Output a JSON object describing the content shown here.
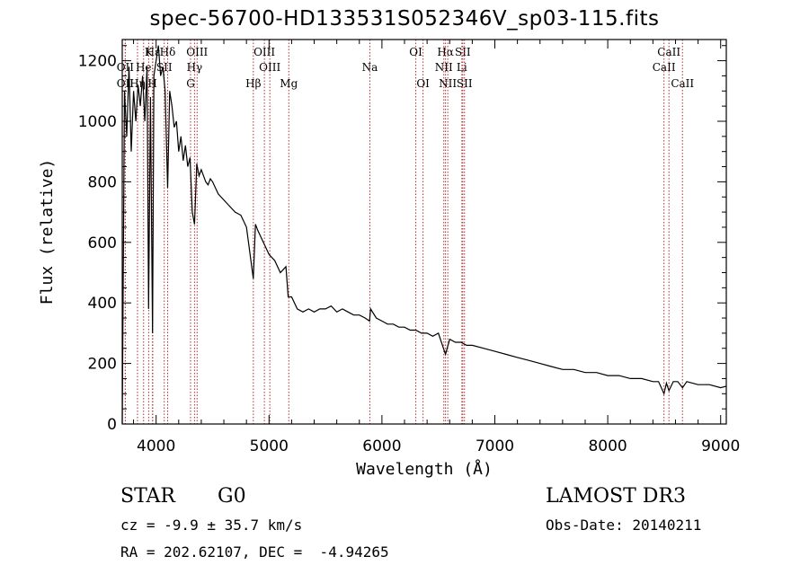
{
  "chart_data": {
    "type": "line",
    "title": "spec-56700-HD133531S052346V_sp03-115.fits",
    "xlabel": "Wavelength (Å)",
    "ylabel": "Flux (relative)",
    "xlim": [
      3700,
      9050
    ],
    "ylim": [
      0,
      1270
    ],
    "x_ticks": [
      4000,
      5000,
      6000,
      7000,
      8000,
      9000
    ],
    "y_ticks": [
      0,
      200,
      400,
      600,
      800,
      1000,
      1200
    ],
    "series": [
      {
        "name": "spectrum",
        "x": [
          3700,
          3720,
          3740,
          3760,
          3780,
          3800,
          3820,
          3840,
          3860,
          3880,
          3900,
          3920,
          3933,
          3950,
          3968,
          3980,
          4000,
          4020,
          4040,
          4060,
          4080,
          4102,
          4120,
          4140,
          4160,
          4180,
          4200,
          4220,
          4240,
          4260,
          4280,
          4300,
          4320,
          4340,
          4360,
          4380,
          4400,
          4420,
          4440,
          4460,
          4480,
          4500,
          4550,
          4600,
          4650,
          4700,
          4750,
          4800,
          4861,
          4880,
          4900,
          4950,
          5000,
          5050,
          5100,
          5150,
          5170,
          5200,
          5250,
          5300,
          5350,
          5400,
          5450,
          5500,
          5550,
          5600,
          5650,
          5700,
          5750,
          5800,
          5850,
          5890,
          5900,
          5950,
          6000,
          6050,
          6100,
          6150,
          6200,
          6250,
          6300,
          6350,
          6400,
          6450,
          6500,
          6563,
          6600,
          6650,
          6700,
          6750,
          6800,
          6900,
          7000,
          7100,
          7200,
          7300,
          7400,
          7500,
          7600,
          7700,
          7800,
          7900,
          8000,
          8100,
          8200,
          8300,
          8400,
          8450,
          8498,
          8520,
          8542,
          8580,
          8620,
          8662,
          8700,
          8800,
          8900,
          9000,
          9050
        ],
        "y": [
          0,
          1100,
          950,
          1180,
          900,
          1100,
          1000,
          1120,
          1050,
          1150,
          1000,
          1180,
          380,
          1080,
          300,
          1150,
          1200,
          1250,
          1150,
          1180,
          1100,
          780,
          1100,
          1050,
          980,
          1000,
          900,
          950,
          870,
          920,
          850,
          880,
          700,
          660,
          860,
          820,
          840,
          820,
          800,
          790,
          810,
          800,
          760,
          740,
          720,
          700,
          690,
          650,
          480,
          660,
          640,
          600,
          560,
          540,
          500,
          520,
          420,
          420,
          380,
          370,
          380,
          370,
          380,
          380,
          390,
          370,
          380,
          370,
          360,
          360,
          350,
          340,
          380,
          350,
          340,
          330,
          330,
          320,
          320,
          310,
          310,
          300,
          300,
          290,
          300,
          230,
          280,
          270,
          270,
          260,
          260,
          250,
          240,
          230,
          220,
          210,
          200,
          190,
          180,
          180,
          170,
          170,
          160,
          160,
          150,
          150,
          140,
          140,
          100,
          135,
          110,
          140,
          140,
          120,
          140,
          130,
          130,
          120,
          125
        ]
      }
    ],
    "lines": [
      {
        "label": "Hε",
        "wl": 3970,
        "row": 1
      },
      {
        "label": "OII",
        "wl": 3727,
        "row": 2
      },
      {
        "label": "OII",
        "wl": 3727,
        "row": 3
      },
      {
        "label": "Hη",
        "wl": 3835,
        "row": 3
      },
      {
        "label": "He",
        "wl": 3889,
        "row": 2
      },
      {
        "label": "K",
        "wl": 3934,
        "row": 1
      },
      {
        "label": "H",
        "wl": 3968,
        "row": 3
      },
      {
        "label": "Hδ",
        "wl": 4102,
        "row": 1
      },
      {
        "label": "SII",
        "wl": 4072,
        "row": 2
      },
      {
        "label": "OIII",
        "wl": 4363,
        "row": 1
      },
      {
        "label": "Hγ",
        "wl": 4340,
        "row": 2
      },
      {
        "label": "G",
        "wl": 4305,
        "row": 3
      },
      {
        "label": "OIII",
        "wl": 4959,
        "row": 1
      },
      {
        "label": "OIII",
        "wl": 5007,
        "row": 2
      },
      {
        "label": "Hβ",
        "wl": 4861,
        "row": 3
      },
      {
        "label": "Mg",
        "wl": 5175,
        "row": 3
      },
      {
        "label": "Na",
        "wl": 5893,
        "row": 2
      },
      {
        "label": "OI",
        "wl": 6300,
        "row": 1
      },
      {
        "label": "OI",
        "wl": 6364,
        "row": 3
      },
      {
        "label": "Hα",
        "wl": 6563,
        "row": 1
      },
      {
        "label": "NII",
        "wl": 6548,
        "row": 2
      },
      {
        "label": "NII",
        "wl": 6583,
        "row": 3
      },
      {
        "label": "SII",
        "wl": 6716,
        "row": 1
      },
      {
        "label": "Li",
        "wl": 6708,
        "row": 2
      },
      {
        "label": "SII",
        "wl": 6731,
        "row": 3
      },
      {
        "label": "CaII",
        "wl": 8542,
        "row": 1
      },
      {
        "label": "CaII",
        "wl": 8498,
        "row": 2
      },
      {
        "label": "CaII",
        "wl": 8662,
        "row": 3
      }
    ]
  },
  "info": {
    "class_label": "STAR",
    "subclass": "G0",
    "survey": "LAMOST DR3",
    "cz": "cz = -9.9 ± 35.7 km/s",
    "obs_date": "Obs-Date: 20140211",
    "radec": "RA = 202.62107, DEC =  -4.94265"
  },
  "colors": {
    "line_marker": "#b03030",
    "spectrum": "#000000"
  }
}
